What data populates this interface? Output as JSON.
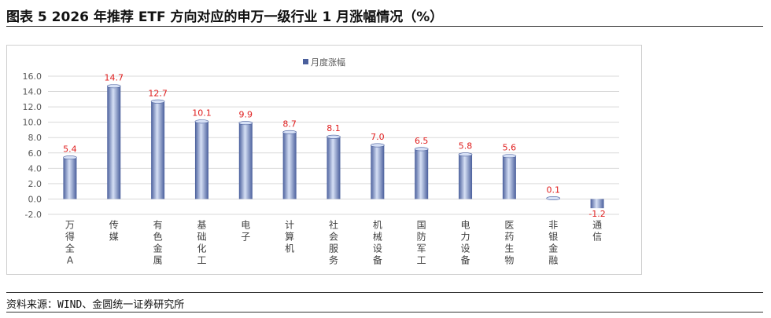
{
  "figure": {
    "title": "图表 5  2026 年推荐 ETF 方向对应的申万一级行业 1 月涨幅情况（%）",
    "source": "资料来源：WIND、金圆统一证券研究所"
  },
  "chart_data": {
    "type": "bar",
    "legend": {
      "label": "月度涨幅",
      "position": "top-center"
    },
    "categories": [
      "万得全A",
      "传媒",
      "有色金属",
      "基础化工",
      "电子",
      "计算机",
      "社会服务",
      "机械设备",
      "国防军工",
      "电力设备",
      "医药生物",
      "非银金融",
      "通信"
    ],
    "series": [
      {
        "name": "月度涨幅",
        "values": [
          5.4,
          14.7,
          12.7,
          10.1,
          9.9,
          8.7,
          8.1,
          7.0,
          6.5,
          5.8,
          5.6,
          0.1,
          -1.2
        ]
      }
    ],
    "value_labels": [
      "5.4",
      "14.7",
      "12.7",
      "10.1",
      "9.9",
      "8.7",
      "8.1",
      "7.0",
      "6.5",
      "5.8",
      "5.6",
      "0.1",
      "-1.2"
    ],
    "ylim": [
      -2.0,
      16.0
    ],
    "yticks": [
      -2.0,
      0.0,
      2.0,
      4.0,
      6.0,
      8.0,
      10.0,
      12.0,
      14.0,
      16.0
    ],
    "ytick_labels": [
      "-2.0",
      "0.0",
      "2.0",
      "4.0",
      "6.0",
      "8.0",
      "10.0",
      "12.0",
      "14.0",
      "16.0"
    ],
    "grid": true,
    "colors": {
      "bar": "#8ea3d8",
      "bar_dark": "#4a5f9c",
      "bar_light": "#d6e0f5",
      "value_label": "#e02020",
      "grid": "#d9d9d9",
      "axis_text": "#595959"
    }
  }
}
